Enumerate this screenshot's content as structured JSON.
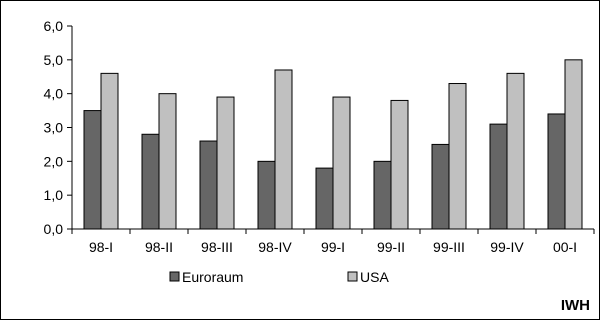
{
  "chart_data": {
    "type": "bar",
    "categories": [
      "98-I",
      "98-II",
      "98-III",
      "98-IV",
      "99-I",
      "99-II",
      "99-III",
      "99-IV",
      "00-I"
    ],
    "series": [
      {
        "name": "Euroraum",
        "color": "#666666",
        "values": [
          3.5,
          2.8,
          2.6,
          2.0,
          1.8,
          2.0,
          2.5,
          3.1,
          3.4
        ]
      },
      {
        "name": "USA",
        "color": "#c0c0c0",
        "values": [
          4.6,
          4.0,
          3.9,
          4.7,
          3.9,
          3.8,
          4.3,
          4.6,
          5.0
        ]
      }
    ],
    "ylim": [
      0,
      6
    ],
    "yticks": [
      "0,0",
      "1,0",
      "2,0",
      "3,0",
      "4,0",
      "5,0",
      "6,0"
    ],
    "grid": false,
    "legend_position": "bottom",
    "source": "IWH"
  }
}
